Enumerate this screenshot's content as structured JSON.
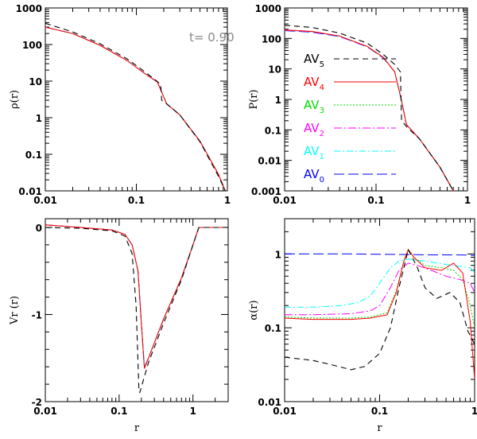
{
  "figure": {
    "time_label": "t= 0.90"
  },
  "colors": {
    "AV5": "#000000",
    "AV4": "#ff0000",
    "AV3": "#00dd00",
    "AV2": "#ff00ff",
    "AV1": "#00ffff",
    "AV0": "#0000ff"
  },
  "chart_data": [
    {
      "id": "rho",
      "type": "line",
      "xscale": "log",
      "yscale": "log",
      "xlim": [
        0.01,
        1.0
      ],
      "ylim": [
        0.01,
        1000
      ],
      "xticks": [
        0.01,
        0.1,
        1
      ],
      "xticklabels": [
        "0.01",
        "0.1",
        "1"
      ],
      "yticks": [
        0.01,
        0.1,
        1,
        10,
        100,
        1000
      ],
      "yticklabels": [
        "0.01",
        "0.1",
        "1",
        "10",
        "100",
        "1000"
      ],
      "ylabel": "ρ(r)",
      "xlabel": "",
      "annotation": "t= 0.90",
      "series": [
        {
          "name": "AV5",
          "x": [
            0.01,
            0.02,
            0.04,
            0.08,
            0.12,
            0.16,
            0.185,
            0.19,
            0.22,
            0.3,
            0.5,
            0.8,
            0.95
          ],
          "y": [
            380,
            220,
            105,
            40,
            19,
            11,
            8.2,
            3.0,
            2.3,
            1.2,
            0.22,
            0.025,
            0.01
          ]
        },
        {
          "name": "AV4",
          "x": [
            0.01,
            0.02,
            0.04,
            0.08,
            0.12,
            0.17,
            0.19,
            0.215,
            0.3,
            0.5,
            0.8,
            0.95
          ],
          "y": [
            300,
            200,
            95,
            36,
            17,
            9.5,
            5.0,
            2.4,
            1.2,
            0.23,
            0.028,
            0.01
          ]
        },
        {
          "name": "AV3",
          "x": [
            0.01,
            0.02,
            0.04,
            0.08,
            0.12,
            0.17,
            0.19,
            0.215,
            0.3,
            0.5,
            0.8,
            0.95
          ],
          "y": [
            300,
            200,
            95,
            36,
            17,
            9.5,
            5.0,
            2.4,
            1.2,
            0.23,
            0.028,
            0.01
          ]
        },
        {
          "name": "AV2",
          "x": [
            0.01,
            0.02,
            0.04,
            0.08,
            0.12,
            0.17,
            0.19,
            0.215,
            0.3,
            0.5,
            0.8,
            0.95
          ],
          "y": [
            300,
            200,
            95,
            36,
            17,
            9.4,
            5.1,
            2.4,
            1.2,
            0.23,
            0.028,
            0.01
          ]
        },
        {
          "name": "AV1",
          "x": [
            0.01,
            0.02,
            0.04,
            0.08,
            0.12,
            0.17,
            0.19,
            0.215,
            0.3,
            0.5,
            0.8,
            0.95
          ],
          "y": [
            300,
            200,
            95,
            36,
            17,
            9.4,
            5.1,
            2.4,
            1.2,
            0.23,
            0.028,
            0.01
          ]
        },
        {
          "name": "AV0",
          "x": [
            0.01,
            0.02,
            0.04,
            0.08,
            0.12,
            0.17,
            0.19,
            0.215,
            0.3,
            0.5,
            0.8,
            0.95
          ],
          "y": [
            300,
            200,
            95,
            36,
            17,
            9.4,
            5.1,
            2.4,
            1.2,
            0.23,
            0.028,
            0.01
          ]
        }
      ]
    },
    {
      "id": "pressure",
      "type": "line",
      "xscale": "log",
      "yscale": "log",
      "xlim": [
        0.01,
        1.0
      ],
      "ylim": [
        0.001,
        1000
      ],
      "xticks": [
        0.01,
        0.1,
        1
      ],
      "xticklabels": [
        "0.01",
        "0.1",
        "1"
      ],
      "yticks": [
        0.001,
        0.01,
        0.1,
        1,
        10,
        100,
        1000
      ],
      "yticklabels": [
        "0.001",
        "0.01",
        "0.1",
        "1",
        "10",
        "100",
        "1000"
      ],
      "ylabel": "P(r)",
      "xlabel": "",
      "legend": [
        "AV5",
        "AV4",
        "AV3",
        "AV2",
        "AV1",
        "AV0"
      ],
      "series": [
        {
          "name": "AV5",
          "x": [
            0.01,
            0.02,
            0.04,
            0.08,
            0.12,
            0.16,
            0.185,
            0.19,
            0.22,
            0.3,
            0.5,
            0.7
          ],
          "y": [
            270,
            230,
            150,
            70,
            30,
            14,
            8,
            0.2,
            0.12,
            0.05,
            0.006,
            0.001
          ]
        },
        {
          "name": "AV4",
          "x": [
            0.01,
            0.02,
            0.04,
            0.08,
            0.12,
            0.16,
            0.19,
            0.215,
            0.3,
            0.5,
            0.7
          ],
          "y": [
            190,
            170,
            120,
            55,
            24,
            8,
            0.9,
            0.15,
            0.05,
            0.006,
            0.001
          ]
        },
        {
          "name": "AV3",
          "x": [
            0.01,
            0.02,
            0.04,
            0.08,
            0.12,
            0.16,
            0.19,
            0.215,
            0.3,
            0.5,
            0.7
          ],
          "y": [
            190,
            170,
            120,
            55,
            24,
            8,
            0.9,
            0.15,
            0.05,
            0.006,
            0.001
          ]
        },
        {
          "name": "AV2",
          "x": [
            0.01,
            0.02,
            0.04,
            0.08,
            0.12,
            0.16,
            0.19,
            0.215,
            0.3,
            0.5,
            0.7
          ],
          "y": [
            185,
            165,
            118,
            54,
            24,
            8,
            0.9,
            0.15,
            0.05,
            0.006,
            0.001
          ]
        },
        {
          "name": "AV1",
          "x": [
            0.01,
            0.02,
            0.04,
            0.08,
            0.12,
            0.16,
            0.19,
            0.215,
            0.3,
            0.5,
            0.7
          ],
          "y": [
            185,
            165,
            118,
            54,
            24,
            8,
            0.9,
            0.15,
            0.05,
            0.006,
            0.001
          ]
        },
        {
          "name": "AV0",
          "x": [
            0.01,
            0.02,
            0.04,
            0.08,
            0.12,
            0.16,
            0.19,
            0.215,
            0.3,
            0.5,
            0.7
          ],
          "y": [
            180,
            160,
            115,
            53,
            23,
            8,
            0.9,
            0.15,
            0.05,
            0.006,
            0.001
          ]
        }
      ]
    },
    {
      "id": "vr",
      "type": "line",
      "xscale": "log",
      "yscale": "linear",
      "xlim": [
        0.01,
        3.0
      ],
      "ylim": [
        -2,
        0.1
      ],
      "xticks": [
        0.01,
        0.1,
        1
      ],
      "xticklabels": [
        "0.01",
        "0.1",
        "1"
      ],
      "yticks": [
        -2,
        -1,
        0
      ],
      "yticklabels": [
        "-2",
        "-1",
        "0"
      ],
      "ylabel": "Vr (r)",
      "xlabel": "r",
      "series": [
        {
          "name": "AV5",
          "x": [
            0.01,
            0.03,
            0.08,
            0.12,
            0.15,
            0.17,
            0.185,
            0.19,
            0.25,
            0.4,
            0.7,
            1.0,
            1.2,
            3.0
          ],
          "y": [
            0,
            -0.01,
            -0.04,
            -0.1,
            -0.3,
            -0.9,
            -1.85,
            -1.9,
            -1.55,
            -1.1,
            -0.6,
            -0.2,
            0,
            0
          ]
        },
        {
          "name": "AV4",
          "x": [
            0.01,
            0.03,
            0.08,
            0.12,
            0.15,
            0.18,
            0.2,
            0.22,
            0.25,
            0.4,
            0.7,
            1.0,
            1.2,
            3.0
          ],
          "y": [
            0.03,
            0.0,
            -0.03,
            -0.08,
            -0.2,
            -0.5,
            -1.1,
            -1.62,
            -1.5,
            -1.05,
            -0.58,
            -0.2,
            0,
            0
          ]
        },
        {
          "name": "AV3",
          "x": [
            0.01,
            0.03,
            0.08,
            0.12,
            0.15,
            0.18,
            0.2,
            0.22,
            0.25,
            0.4,
            0.7,
            1.0,
            1.2,
            3.0
          ],
          "y": [
            0.03,
            0.0,
            -0.03,
            -0.08,
            -0.2,
            -0.5,
            -1.1,
            -1.62,
            -1.5,
            -1.05,
            -0.58,
            -0.2,
            0,
            0
          ]
        },
        {
          "name": "AV2",
          "x": [
            0.01,
            0.03,
            0.08,
            0.12,
            0.15,
            0.18,
            0.2,
            0.22,
            0.25,
            0.4,
            0.7,
            1.0,
            1.2,
            3.0
          ],
          "y": [
            0.03,
            0.0,
            -0.03,
            -0.08,
            -0.2,
            -0.5,
            -1.1,
            -1.61,
            -1.5,
            -1.05,
            -0.58,
            -0.2,
            0,
            0
          ]
        },
        {
          "name": "AV1",
          "x": [
            0.01,
            0.03,
            0.08,
            0.12,
            0.15,
            0.18,
            0.2,
            0.22,
            0.25,
            0.4,
            0.7,
            1.0,
            1.2,
            3.0
          ],
          "y": [
            0.03,
            0.0,
            -0.03,
            -0.08,
            -0.2,
            -0.5,
            -1.1,
            -1.6,
            -1.5,
            -1.05,
            -0.58,
            -0.2,
            0,
            0
          ]
        },
        {
          "name": "AV0",
          "x": [
            0.01,
            0.03,
            0.08,
            0.12,
            0.15,
            0.18,
            0.2,
            0.22,
            0.25,
            0.4,
            0.7,
            1.0,
            1.2,
            3.0
          ],
          "y": [
            0.03,
            0.0,
            -0.03,
            -0.08,
            -0.2,
            -0.5,
            -1.1,
            -1.6,
            -1.5,
            -1.05,
            -0.58,
            -0.2,
            0,
            0
          ]
        }
      ]
    },
    {
      "id": "alpha",
      "type": "line",
      "xscale": "log",
      "yscale": "log",
      "xlim": [
        0.01,
        1.0
      ],
      "ylim": [
        0.01,
        3
      ],
      "xticks": [
        0.01,
        0.1,
        1
      ],
      "xticklabels": [
        "0.01",
        "0.1",
        "1"
      ],
      "yticks": [
        0.01,
        0.1,
        1
      ],
      "yticklabels": [
        "0.01",
        "0.1",
        "1"
      ],
      "ylabel": "α(r)",
      "xlabel": "r",
      "series": [
        {
          "name": "AV5",
          "x": [
            0.01,
            0.02,
            0.03,
            0.05,
            0.07,
            0.1,
            0.13,
            0.16,
            0.2,
            0.25,
            0.3,
            0.4,
            0.55,
            0.7,
            0.85,
            1.0
          ],
          "y": [
            0.04,
            0.036,
            0.032,
            0.027,
            0.03,
            0.045,
            0.1,
            0.35,
            1.15,
            0.65,
            0.35,
            0.25,
            0.3,
            0.22,
            0.09,
            0.06
          ]
        },
        {
          "name": "AV4",
          "x": [
            0.01,
            0.02,
            0.05,
            0.08,
            0.12,
            0.15,
            0.18,
            0.2,
            0.23,
            0.3,
            0.45,
            0.6,
            0.75,
            0.9,
            1.0
          ],
          "y": [
            0.135,
            0.13,
            0.13,
            0.135,
            0.15,
            0.3,
            0.8,
            1.15,
            0.9,
            0.65,
            0.6,
            0.75,
            0.55,
            0.12,
            0.02
          ]
        },
        {
          "name": "AV3",
          "x": [
            0.01,
            0.02,
            0.05,
            0.08,
            0.12,
            0.15,
            0.18,
            0.2,
            0.23,
            0.3,
            0.45,
            0.6,
            0.75,
            0.9,
            1.0
          ],
          "y": [
            0.14,
            0.135,
            0.135,
            0.14,
            0.16,
            0.32,
            0.8,
            1.1,
            0.9,
            0.7,
            0.65,
            0.6,
            0.45,
            0.2,
            0.1
          ]
        },
        {
          "name": "AV2",
          "x": [
            0.01,
            0.02,
            0.05,
            0.08,
            0.1,
            0.13,
            0.16,
            0.2,
            0.25,
            0.35,
            0.5,
            0.7,
            0.9,
            1.0
          ],
          "y": [
            0.15,
            0.15,
            0.155,
            0.17,
            0.2,
            0.35,
            0.6,
            0.75,
            0.7,
            0.6,
            0.5,
            0.45,
            0.4,
            0.3
          ]
        },
        {
          "name": "AV1",
          "x": [
            0.01,
            0.02,
            0.04,
            0.06,
            0.08,
            0.1,
            0.13,
            0.16,
            0.2,
            0.3,
            0.5,
            0.7,
            0.9,
            1.0
          ],
          "y": [
            0.19,
            0.19,
            0.2,
            0.22,
            0.27,
            0.4,
            0.65,
            0.8,
            0.85,
            0.8,
            0.72,
            0.68,
            0.65,
            0.55
          ]
        },
        {
          "name": "AV0",
          "x": [
            0.01,
            0.05,
            0.1,
            0.2,
            0.4,
            0.7,
            0.9,
            1.0
          ],
          "y": [
            1.0,
            1.0,
            0.99,
            0.98,
            0.97,
            0.97,
            0.96,
            0.95
          ]
        }
      ]
    }
  ]
}
